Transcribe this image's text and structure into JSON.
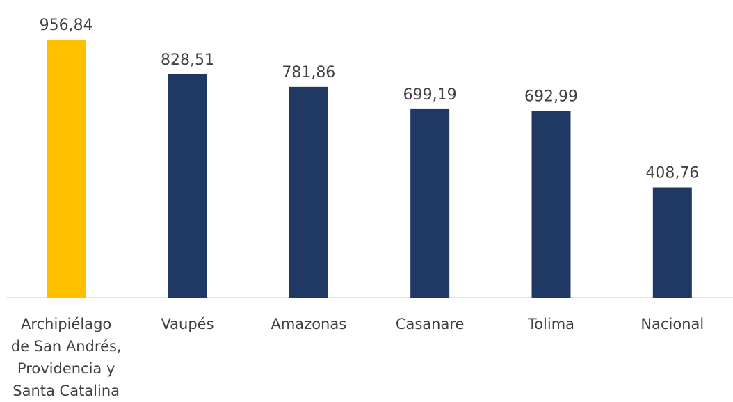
{
  "chart_data": {
    "type": "bar",
    "categories": [
      [
        "Archipiélago",
        "de San Andrés,",
        "Providencia y",
        "Santa Catalina"
      ],
      [
        "Vaupés"
      ],
      [
        "Amazonas"
      ],
      [
        "Casanare"
      ],
      [
        "Tolima"
      ],
      [
        "Nacional"
      ]
    ],
    "values": [
      956.84,
      828.51,
      781.86,
      699.19,
      692.99,
      408.76
    ],
    "value_labels": [
      "956,84",
      "828,51",
      "781,86",
      "699,19",
      "692,99",
      "408,76"
    ],
    "bar_colors": [
      "#FFC000",
      "#1F3864",
      "#1F3864",
      "#1F3864",
      "#1F3864",
      "#1F3864"
    ],
    "axis_color": "#D9D9D9",
    "grid": false,
    "legend": "none",
    "ylim": [
      0,
      956.84
    ]
  }
}
